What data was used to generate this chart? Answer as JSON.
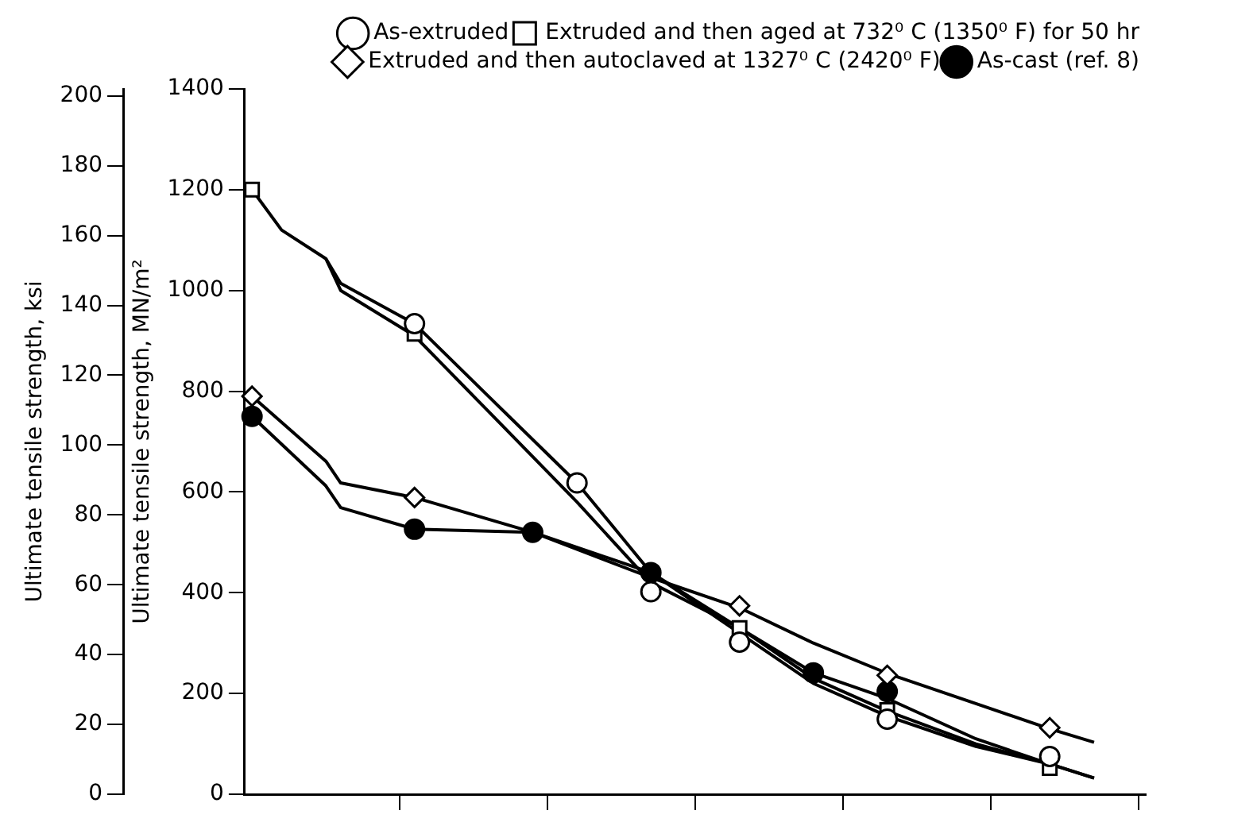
{
  "chart_data": {
    "type": "scatter",
    "ylabel": "Ultimate tensile strength, MN/m²",
    "y2label": "Ultimate tensile strength, ksi",
    "categories": [
      null,
      null,
      null,
      null,
      null,
      null,
      null,
      null,
      null,
      null,
      null,
      null,
      null,
      null,
      null,
      null,
      null,
      null,
      null,
      null,
      null,
      null,
      null,
      null,
      null,
      null,
      null,
      null,
      null,
      null,
      null,
      null,
      null,
      null,
      null,
      null,
      null,
      null,
      null,
      null,
      null,
      null,
      null,
      null,
      null,
      null,
      null,
      null,
      null,
      null,
      null,
      null,
      null,
      null,
      null,
      null,
      null,
      null,
      null,
      null,
      null
    ],
    "ylim": [
      0,
      1400
    ],
    "yticks": [
      0,
      200,
      400,
      600,
      800,
      1000,
      1200,
      1400
    ],
    "y2lim": [
      0,
      202
    ],
    "y2ticks": [
      0,
      20,
      40,
      60,
      80,
      100,
      120,
      140,
      160,
      180,
      200
    ],
    "tick_labels": "y",
    "grid": false,
    "legend": "top right",
    "series": [
      {
        "name": "As-extruded",
        "color": "#ffffff",
        "marker": "circle",
        "values": [
          null,
          null,
          null,
          null,
          null,
          null,
          null,
          null,
          null,
          null,
          null,
          934,
          null,
          null,
          null,
          null,
          null,
          null,
          null,
          null,
          null,
          null,
          618,
          null,
          null,
          null,
          null,
          402,
          null,
          null,
          null,
          null,
          null,
          302,
          null,
          null,
          null,
          null,
          null,
          null,
          null,
          null,
          null,
          149,
          null,
          null,
          null,
          null,
          null,
          null,
          null,
          null,
          null,
          null,
          75,
          null,
          null,
          null,
          null,
          null,
          null
        ]
      },
      {
        "name": "Extruded and then aged at 732⁰ C (1350⁰ F) for 50 hr",
        "color": "#ffffff",
        "marker": "square",
        "values": [
          1200,
          null,
          null,
          null,
          null,
          null,
          null,
          null,
          null,
          null,
          null,
          914,
          null,
          null,
          null,
          null,
          null,
          null,
          null,
          null,
          null,
          null,
          null,
          null,
          null,
          null,
          null,
          null,
          null,
          null,
          null,
          null,
          null,
          330,
          null,
          null,
          null,
          null,
          null,
          null,
          null,
          null,
          null,
          167,
          null,
          null,
          null,
          null,
          null,
          null,
          null,
          null,
          null,
          null,
          52,
          null,
          null,
          null,
          null,
          null,
          null
        ]
      },
      {
        "name": "Extruded and then autoclaved at 1327⁰ C (2420⁰ F)",
        "color": "#ffffff",
        "marker": "diamond",
        "values": [
          790,
          null,
          null,
          null,
          null,
          null,
          null,
          null,
          null,
          null,
          null,
          589,
          null,
          null,
          null,
          null,
          null,
          null,
          null,
          null,
          null,
          null,
          null,
          null,
          null,
          null,
          null,
          null,
          null,
          null,
          null,
          null,
          null,
          374,
          null,
          null,
          null,
          null,
          null,
          null,
          null,
          null,
          null,
          236,
          null,
          null,
          null,
          null,
          null,
          null,
          null,
          null,
          null,
          null,
          132,
          null,
          null,
          null,
          null,
          null,
          null
        ]
      },
      {
        "name": "As-cast (ref. 8)",
        "color": "#000000",
        "marker": "circle",
        "values": [
          750,
          null,
          null,
          null,
          null,
          null,
          null,
          null,
          null,
          null,
          null,
          526,
          null,
          null,
          null,
          null,
          null,
          null,
          null,
          520,
          null,
          null,
          null,
          null,
          null,
          null,
          null,
          440,
          null,
          null,
          null,
          null,
          null,
          null,
          null,
          null,
          null,
          null,
          241,
          null,
          null,
          null,
          null,
          204,
          null,
          null,
          null,
          null,
          null,
          null,
          null,
          null,
          null,
          null,
          null,
          null,
          null,
          null,
          null,
          null,
          null
        ]
      },
      {
        "type": "line",
        "color": "#000000",
        "values": [
          1200,
          null,
          1120,
          null,
          null,
          1063,
          1014,
          null,
          null,
          null,
          null,
          934,
          null,
          null,
          null,
          null,
          790,
          null,
          null,
          null,
          null,
          null,
          618,
          null,
          null,
          null,
          null,
          440,
          null,
          null,
          null,
          null,
          null,
          320,
          null,
          null,
          null,
          null,
          220,
          null,
          null,
          null,
          null,
          155,
          null,
          null,
          null,
          null,
          null,
          95,
          null,
          null,
          null,
          null,
          60,
          null,
          null,
          32,
          null,
          null,
          null
        ]
      },
      {
        "type": "line",
        "color": "#000000",
        "values": [
          null,
          null,
          null,
          null,
          null,
          1063,
          1000,
          null,
          null,
          null,
          null,
          910,
          null,
          null,
          null,
          null,
          760,
          null,
          null,
          null,
          null,
          null,
          580,
          null,
          null,
          null,
          null,
          420,
          null,
          null,
          null,
          null,
          null,
          330,
          null,
          null,
          null,
          null,
          230,
          null,
          null,
          null,
          null,
          165,
          null,
          null,
          null,
          null,
          null,
          100,
          null,
          null,
          null,
          null,
          60,
          null,
          null,
          null,
          null,
          null,
          null
        ]
      },
      {
        "type": "line",
        "color": "#000000",
        "values": [
          790,
          null,
          null,
          null,
          null,
          661,
          618,
          null,
          null,
          null,
          null,
          589,
          null,
          null,
          null,
          null,
          null,
          null,
          null,
          520,
          null,
          null,
          null,
          null,
          null,
          null,
          null,
          430,
          null,
          null,
          null,
          null,
          null,
          370,
          null,
          null,
          null,
          null,
          300,
          null,
          null,
          null,
          null,
          240,
          null,
          null,
          null,
          null,
          null,
          180,
          null,
          null,
          null,
          null,
          130,
          null,
          null,
          103,
          null,
          null,
          null
        ]
      },
      {
        "type": "line",
        "color": "#000000",
        "values": [
          750,
          null,
          null,
          null,
          null,
          612,
          569,
          null,
          null,
          null,
          null,
          526,
          null,
          null,
          null,
          null,
          null,
          null,
          null,
          520,
          null,
          null,
          null,
          null,
          null,
          null,
          null,
          440,
          null,
          null,
          null,
          null,
          null,
          330,
          null,
          null,
          null,
          null,
          241,
          null,
          null,
          null,
          null,
          190,
          null,
          null,
          null,
          null,
          null,
          110,
          null,
          null,
          null,
          null,
          60,
          null,
          null,
          32,
          null,
          null,
          null
        ]
      }
    ]
  }
}
